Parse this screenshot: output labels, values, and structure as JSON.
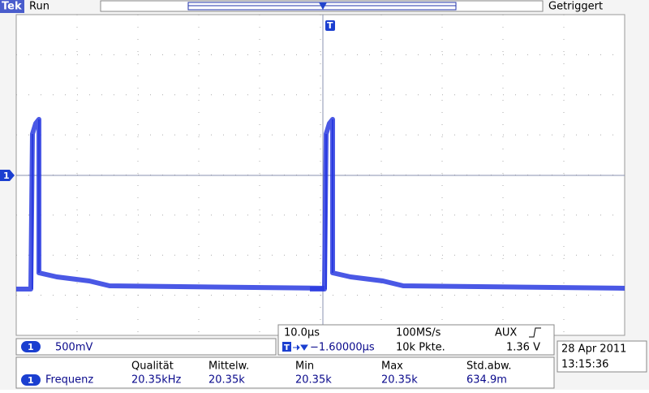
{
  "header": {
    "brand": "Tek",
    "status": "Run",
    "trigger_state": "Getriggert",
    "trigger_marker": "T"
  },
  "channel": {
    "marker": "1",
    "scale": "500mV"
  },
  "timebase": {
    "scale": "10.0µs",
    "sample_rate": "100MS/s",
    "trigger_source": "AUX",
    "trigger_position": "−1.60000µs",
    "record_length": "10k Pkte.",
    "trigger_level": "1.36 V"
  },
  "datetime": {
    "date": "28 Apr 2011",
    "time": "13:15:36"
  },
  "measurements": {
    "headers": [
      "Qualität",
      "Mittelw.",
      "Min",
      "Max",
      "Std.abw."
    ],
    "rows": [
      {
        "channel": "1",
        "name": "Frequenz",
        "values": [
          "20.35kHz",
          "20.35k",
          "20.35k",
          "20.35k",
          "634.9m"
        ]
      }
    ]
  }
}
